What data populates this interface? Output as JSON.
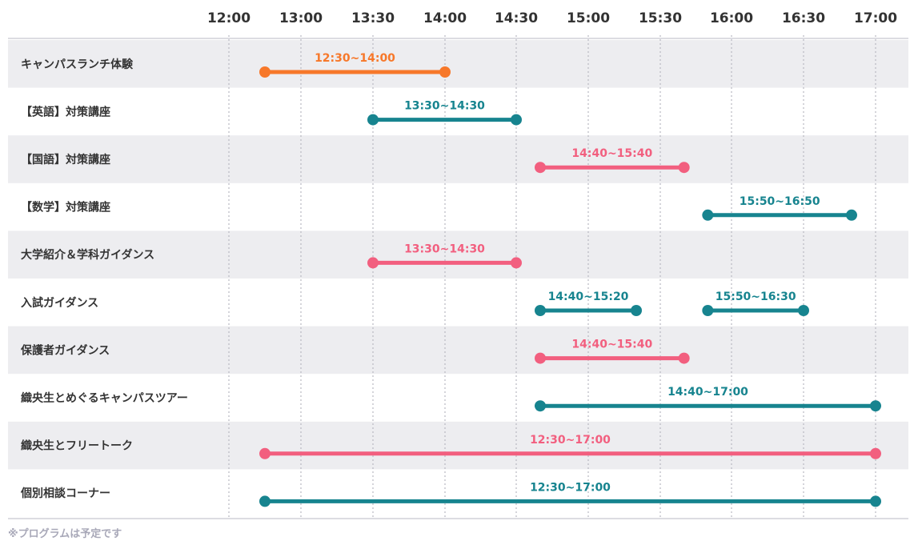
{
  "chart_data": {
    "type": "timeline",
    "time_axis": [
      "12:00",
      "13:00",
      "13:30",
      "14:00",
      "14:30",
      "15:00",
      "15:30",
      "16:00",
      "16:30",
      "17:00"
    ],
    "colors": {
      "orange": "#f7782a",
      "teal": "#17848f",
      "pink": "#f25f7f"
    },
    "rows": [
      {
        "name": "キャンパスランチ体験",
        "segments": [
          {
            "start": "12:30",
            "end": "14:00",
            "label": "12:30~14:00",
            "color": "orange"
          }
        ]
      },
      {
        "name": "【英語】対策講座",
        "segments": [
          {
            "start": "13:30",
            "end": "14:30",
            "label": "13:30~14:30",
            "color": "teal"
          }
        ]
      },
      {
        "name": "【国語】対策講座",
        "segments": [
          {
            "start": "14:40",
            "end": "15:40",
            "label": "14:40~15:40",
            "color": "pink"
          }
        ]
      },
      {
        "name": "【数学】対策講座",
        "segments": [
          {
            "start": "15:50",
            "end": "16:50",
            "label": "15:50~16:50",
            "color": "teal"
          }
        ]
      },
      {
        "name": "大学紹介＆学科ガイダンス",
        "segments": [
          {
            "start": "13:30",
            "end": "14:30",
            "label": "13:30~14:30",
            "color": "pink"
          }
        ]
      },
      {
        "name": "入試ガイダンス",
        "segments": [
          {
            "start": "14:40",
            "end": "15:20",
            "label": "14:40~15:20",
            "color": "teal"
          },
          {
            "start": "15:50",
            "end": "16:30",
            "label": "15:50~16:30",
            "color": "teal"
          }
        ]
      },
      {
        "name": "保護者ガイダンス",
        "segments": [
          {
            "start": "14:40",
            "end": "15:40",
            "label": "14:40~15:40",
            "color": "pink"
          }
        ]
      },
      {
        "name": "織央生とめぐるキャンパスツアー",
        "segments": [
          {
            "start": "14:40",
            "end": "17:00",
            "label": "14:40~17:00",
            "color": "teal"
          }
        ]
      },
      {
        "name": "織央生とフリートーク",
        "segments": [
          {
            "start": "12:30",
            "end": "17:00",
            "label": "12:30~17:00",
            "color": "pink"
          }
        ]
      },
      {
        "name": "個別相談コーナー",
        "segments": [
          {
            "start": "12:30",
            "end": "17:00",
            "label": "12:30~17:00",
            "color": "teal"
          }
        ]
      }
    ]
  },
  "footnote": "※プログラムは予定です"
}
